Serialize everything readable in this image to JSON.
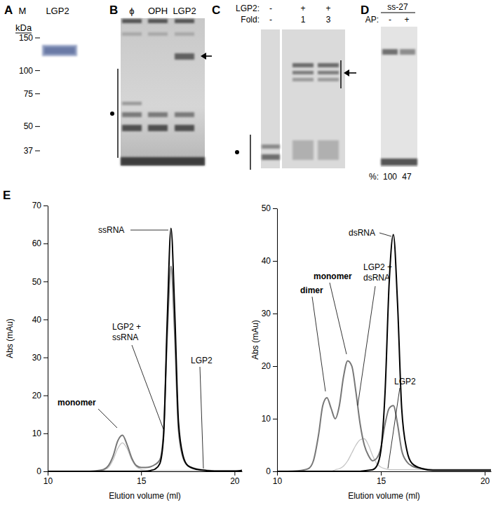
{
  "panels": [
    {
      "label": "A",
      "lanes": [
        "M",
        "LGP2"
      ],
      "unit": "kDa",
      "markers": [
        150,
        100,
        75,
        50,
        37
      ]
    },
    {
      "label": "B",
      "lanes": [
        "ϕ",
        "OPH",
        "LGP2"
      ]
    },
    {
      "label": "C",
      "rows": [
        {
          "name": "LGP2:",
          "values": [
            "-",
            "+",
            "+"
          ]
        },
        {
          "name": "Fold:",
          "values": [
            "-",
            "1",
            "3"
          ]
        }
      ]
    },
    {
      "label": "D",
      "header": "ss-27",
      "rows": [
        {
          "name": "AP:",
          "values": [
            "-",
            "+"
          ]
        }
      ],
      "percent": {
        "name": "%:",
        "values": [
          100,
          47
        ]
      }
    },
    {
      "label": "E"
    }
  ],
  "chart_data": [
    {
      "type": "line",
      "x_label": "Elution volume (ml)",
      "y_label": "Abs (mAu)",
      "x": [
        10,
        10.5,
        11,
        11.5,
        12,
        12.5,
        13,
        13.25,
        13.5,
        13.75,
        14,
        14.25,
        14.5,
        14.75,
        15,
        15.25,
        15.5,
        15.75,
        16,
        16.2,
        16.4,
        16.6,
        16.8,
        17,
        17.25,
        17.5,
        18,
        18.5,
        19,
        19.5,
        20,
        20.4
      ],
      "series": [
        {
          "name": "ssRNA",
          "color": "#000000",
          "values": [
            0,
            0,
            0,
            0,
            0,
            0,
            0,
            0,
            0,
            0,
            0,
            0,
            0,
            0,
            0,
            0,
            0.2,
            0.6,
            2,
            9,
            40,
            64,
            42,
            13,
            4,
            1.5,
            0.5,
            0.2,
            0,
            0,
            0,
            0.3
          ]
        },
        {
          "name": "LGP2 + ssRNA",
          "color": "#777777",
          "values": [
            0,
            0,
            0,
            0,
            0,
            0.1,
            0.5,
            1.5,
            4,
            8,
            9.5,
            7,
            3.5,
            1.5,
            1,
            1,
            1.2,
            1.8,
            3,
            10,
            36,
            54,
            36,
            11,
            3.5,
            1.5,
            0.6,
            0.3,
            0.2,
            0.2,
            0.2,
            0.2
          ]
        },
        {
          "name": "LGP2",
          "color": "#c4c4c4",
          "values": [
            0,
            0,
            0,
            0,
            0,
            0,
            0.3,
            1,
            3,
            6,
            7.5,
            6,
            3,
            1.2,
            0.5,
            0.3,
            0.2,
            0.2,
            0.2,
            0.2,
            0.2,
            0.2,
            0.2,
            0.2,
            0.2,
            0.2,
            0.2,
            0.2,
            0.2,
            0.2,
            0.2,
            0.2
          ]
        }
      ],
      "xlim": [
        10,
        20.4
      ],
      "xticks": [
        10,
        15,
        20
      ],
      "ylim": [
        0,
        70
      ],
      "yticks": [
        0,
        10,
        20,
        30,
        40,
        50,
        60,
        70
      ],
      "annotations": [
        {
          "text": "monomer"
        }
      ]
    },
    {
      "type": "line",
      "x_label": "Elution volume (ml)",
      "y_label": "Abs (mAu)",
      "x": [
        10,
        10.5,
        11,
        11.5,
        11.75,
        12,
        12.2,
        12.4,
        12.6,
        12.8,
        13,
        13.2,
        13.4,
        13.6,
        13.8,
        14,
        14.2,
        14.4,
        14.6,
        14.8,
        15,
        15.2,
        15.4,
        15.6,
        15.8,
        16,
        16.25,
        16.5,
        17,
        17.5,
        18,
        18.5,
        19,
        19.5,
        20,
        20.3
      ],
      "series": [
        {
          "name": "dsRNA",
          "color": "#000000",
          "values": [
            0,
            0,
            0,
            0,
            0,
            0,
            0,
            0,
            0,
            0,
            0,
            0,
            0,
            0,
            0,
            0,
            0.1,
            0.2,
            0.3,
            1,
            4,
            15,
            36,
            45,
            32,
            12,
            4,
            1.5,
            0.5,
            0.2,
            0.2,
            0.2,
            0.2,
            0.2,
            0.2,
            0.2
          ]
        },
        {
          "name": "LGP2 + dsRNA",
          "color": "#777777",
          "values": [
            0,
            0,
            0.1,
            0.5,
            2,
            7,
            12.5,
            14,
            12,
            10,
            12.5,
            18,
            21,
            20,
            15,
            9,
            5,
            3,
            2,
            2.5,
            4.5,
            9,
            12,
            12.5,
            9,
            4,
            1.8,
            1,
            0.5,
            0.3,
            0.3,
            0.3,
            0.3,
            0.3,
            0.3,
            0.3
          ]
        },
        {
          "name": "LGP2",
          "color": "#c4c4c4",
          "values": [
            0,
            0,
            0,
            0,
            0,
            0,
            0,
            0,
            0,
            0.3,
            0.5,
            1,
            2,
            3.5,
            5,
            6,
            6.2,
            5,
            3,
            1.5,
            0.8,
            0.5,
            0.3,
            0.3,
            0.3,
            0.3,
            0.3,
            0.3,
            0.3,
            0.3,
            0.3,
            0.3,
            0.3,
            0.3,
            0.3,
            0.3
          ]
        }
      ],
      "xlim": [
        10,
        20.3
      ],
      "xticks": [
        10,
        15,
        20
      ],
      "ylim": [
        0,
        50
      ],
      "yticks": [
        0,
        10,
        20,
        30,
        40,
        50
      ],
      "annotations": [
        {
          "text": "monomer"
        },
        {
          "text": "dimer"
        }
      ]
    }
  ]
}
